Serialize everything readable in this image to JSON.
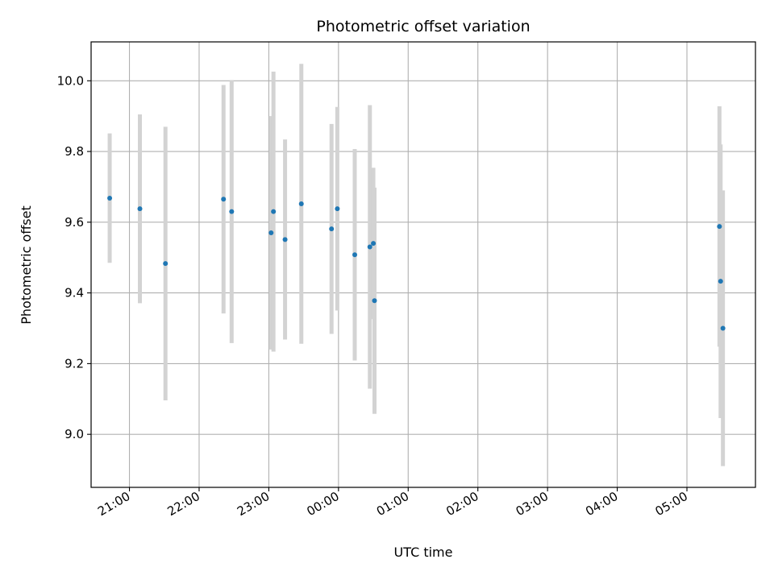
{
  "chart_data": {
    "type": "scatter",
    "title": "Photometric offset variation",
    "xlabel": "UTC time",
    "ylabel": "Photometric offset",
    "grid": true,
    "xlim": [
      "20:27",
      "05:59"
    ],
    "ylim": [
      8.85,
      10.11
    ],
    "x_ticks": [
      "21:00",
      "22:00",
      "23:00",
      "00:00",
      "01:00",
      "02:00",
      "03:00",
      "04:00",
      "05:00"
    ],
    "y_ticks": [
      "9.0",
      "9.2",
      "9.4",
      "9.6",
      "9.8",
      "10.0"
    ],
    "colors": {
      "points": "#1f77b4",
      "error_bars": "#d3d3d3",
      "grid": "#b0b0b0"
    },
    "points": [
      {
        "x": "20:43",
        "y": 9.668,
        "err": 0.183
      },
      {
        "x": "21:09",
        "y": 9.638,
        "err": 0.267
      },
      {
        "x": "21:31",
        "y": 9.483,
        "err": 0.387
      },
      {
        "x": "22:21",
        "y": 9.665,
        "err": 0.323
      },
      {
        "x": "22:28",
        "y": 9.63,
        "err": 0.372
      },
      {
        "x": "23:02",
        "y": 9.57,
        "err": 0.33
      },
      {
        "x": "23:04",
        "y": 9.63,
        "err": 0.396
      },
      {
        "x": "23:14",
        "y": 9.551,
        "err": 0.283
      },
      {
        "x": "23:28",
        "y": 9.652,
        "err": 0.396
      },
      {
        "x": "23:54",
        "y": 9.581,
        "err": 0.297
      },
      {
        "x": "23:59",
        "y": 9.638,
        "err": 0.288
      },
      {
        "x": "00:14",
        "y": 9.508,
        "err": 0.299
      },
      {
        "x": "00:27",
        "y": 9.53,
        "err": 0.401
      },
      {
        "x": "00:30",
        "y": 9.54,
        "err": 0.214
      },
      {
        "x": "00:31",
        "y": 9.378,
        "err": 0.32
      },
      {
        "x": "05:28",
        "y": 9.588,
        "err": 0.34
      },
      {
        "x": "05:29",
        "y": 9.433,
        "err": 0.387
      },
      {
        "x": "05:31",
        "y": 9.3,
        "err": 0.39
      }
    ]
  }
}
